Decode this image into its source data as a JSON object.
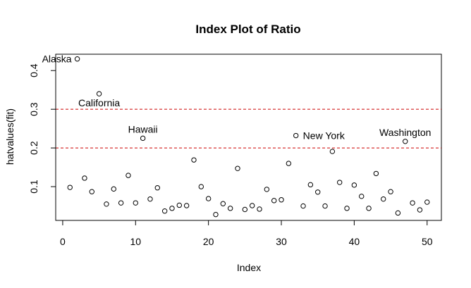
{
  "chart_data": {
    "type": "scatter",
    "title": "Index Plot of Ratio",
    "xlabel": "Index",
    "ylabel": "hatvalues(fit)",
    "xlim": [
      -0.96,
      51.96
    ],
    "ylim": [
      0.0128,
      0.4422
    ],
    "x_ticks": [
      0,
      10,
      20,
      30,
      40,
      50
    ],
    "y_ticks": [
      0.1,
      0.2,
      0.3,
      0.4
    ],
    "grid": false,
    "legend": "none",
    "point_color": "#000000",
    "reference_line_color": "#cc0000",
    "reference_lines": [
      0.2,
      0.3
    ],
    "x": [
      1,
      2,
      3,
      4,
      5,
      6,
      7,
      8,
      9,
      10,
      11,
      12,
      13,
      14,
      15,
      16,
      17,
      18,
      19,
      20,
      21,
      22,
      23,
      24,
      25,
      26,
      27,
      28,
      29,
      30,
      31,
      32,
      33,
      34,
      35,
      36,
      37,
      38,
      39,
      40,
      41,
      42,
      43,
      44,
      45,
      46,
      47,
      48,
      49,
      50
    ],
    "y": [
      0.098,
      0.43,
      0.122,
      0.087,
      0.34,
      0.055,
      0.094,
      0.058,
      0.129,
      0.058,
      0.225,
      0.068,
      0.097,
      0.037,
      0.044,
      0.052,
      0.051,
      0.169,
      0.1,
      0.069,
      0.028,
      0.056,
      0.044,
      0.147,
      0.041,
      0.051,
      0.042,
      0.093,
      0.064,
      0.066,
      0.16,
      0.232,
      0.05,
      0.105,
      0.086,
      0.05,
      0.191,
      0.111,
      0.044,
      0.104,
      0.075,
      0.044,
      0.134,
      0.068,
      0.087,
      0.032,
      0.217,
      0.058,
      0.04,
      0.06
    ],
    "annotations": [
      {
        "text": "Alaska",
        "x": 2,
        "y": 0.43,
        "side": "left"
      },
      {
        "text": "California",
        "x": 5,
        "y": 0.34,
        "side": "below"
      },
      {
        "text": "Hawaii",
        "x": 11,
        "y": 0.225,
        "side": "above"
      },
      {
        "text": "New York",
        "x": 32,
        "y": 0.232,
        "side": "right"
      },
      {
        "text": "Washington",
        "x": 47,
        "y": 0.217,
        "side": "above"
      }
    ]
  }
}
